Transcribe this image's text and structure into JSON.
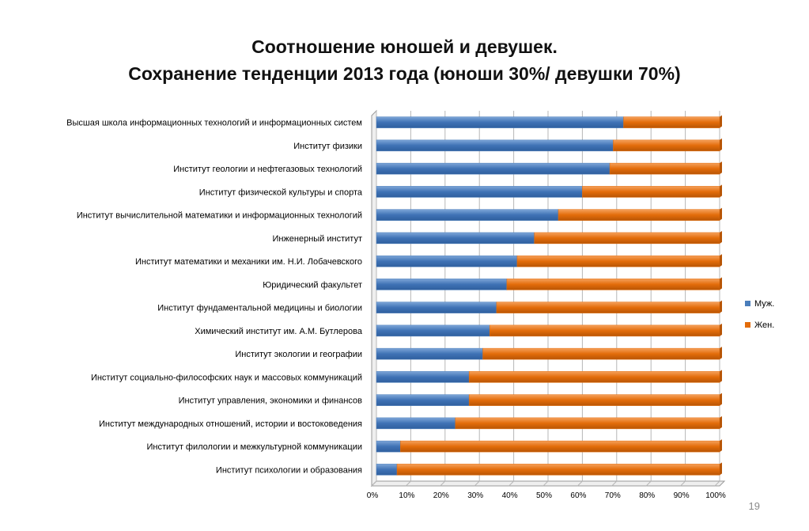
{
  "slide": {
    "title_line1": "Соотношение юношей и девушек.",
    "title_line2": "Сохранение тенденции 2013 года (юноши 30%/ девушки 70%)",
    "page_number": "19"
  },
  "chart_data": {
    "type": "bar",
    "orientation": "horizontal",
    "stacked": "percent",
    "title": "",
    "xlabel": "",
    "ylabel": "",
    "xlim": [
      0,
      100
    ],
    "x_ticks": [
      "0%",
      "10%",
      "20%",
      "30%",
      "40%",
      "50%",
      "60%",
      "70%",
      "80%",
      "90%",
      "100%"
    ],
    "grid": "vertical",
    "legend_position": "right",
    "categories": [
      "Высшая школа информационных технологий и информационных систем",
      "Институт физики",
      "Институт геологии и нефтегазовых технологий",
      "Институт физической культуры и спорта",
      "Институт вычислительной математики и информационных технологий",
      "Инженерный институт",
      "Институт математики и механики им. Н.И. Лобачевского",
      "Юридический факультет",
      "Институт фундаментальной медицины и биологии",
      "Химический институт им. А.М. Бутлерова",
      "Институт экологии и географии",
      "Институт социально-философских наук и массовых коммуникаций",
      "Институт управления, экономики и финансов",
      "Институт международных отношений, истории и востоковедения",
      "Институт филологии и межкультурной коммуникации",
      "Институт психологии и образования"
    ],
    "series": [
      {
        "name": "Муж.",
        "color": "#4a7ebb",
        "values": [
          72,
          69,
          68,
          60,
          53,
          46,
          41,
          38,
          35,
          33,
          31,
          27,
          27,
          23,
          7,
          6
        ]
      },
      {
        "name": "Жен.",
        "color": "#e36c0a",
        "values": [
          28,
          31,
          32,
          40,
          47,
          54,
          59,
          62,
          65,
          67,
          69,
          73,
          73,
          77,
          93,
          94
        ]
      }
    ]
  }
}
